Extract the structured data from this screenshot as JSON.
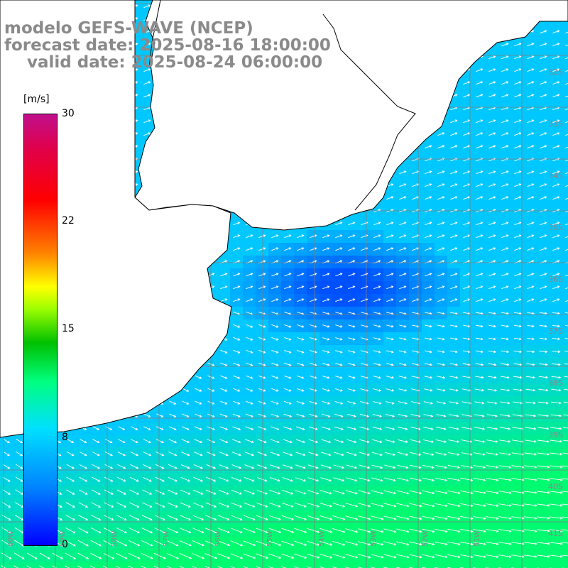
{
  "title": {
    "line1": "modelo GEFS-WAVE (NCEP)",
    "line2": "forecast date: 2025-08-16 18:00:00",
    "line3": "    valid date: 2025-08-24 06:00:00"
  },
  "colorbar": {
    "unit": "[m/s]",
    "ticks": [
      "30",
      "22",
      "15",
      "8",
      "0"
    ]
  },
  "lat_labels": [
    "32S",
    "33S",
    "34S",
    "35S",
    "36S",
    "37S",
    "38S",
    "39S",
    "40S",
    "41S"
  ],
  "lon_labels": [
    "60W",
    "59W",
    "58W",
    "57W",
    "56W",
    "55W",
    "54W",
    "53W",
    "52W",
    "51W"
  ],
  "colors": {
    "land": "#ffffff",
    "coast": "#000000",
    "grid": "#7f7f7f",
    "calm": "#0050ff",
    "sea": "#00c8ff",
    "strong": "#00ff60",
    "arrow": "#ffffff",
    "title": "#8a8a8a"
  }
}
